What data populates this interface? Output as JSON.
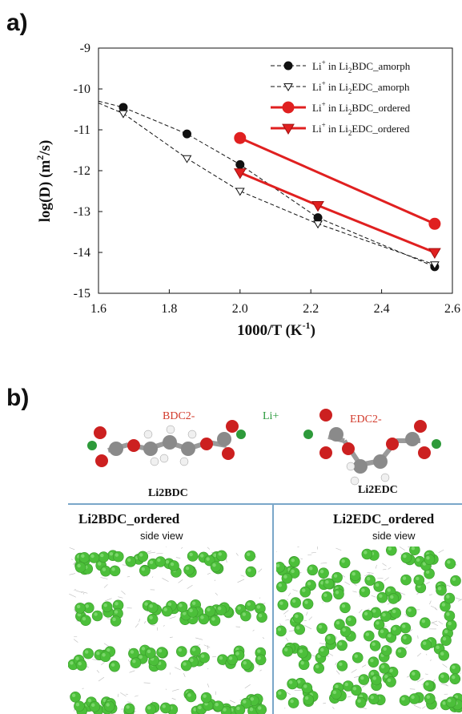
{
  "panel_a_label": "a)",
  "panel_b_label": "b)",
  "chart_data": {
    "type": "line",
    "xlabel": "1000/T (K-1)",
    "ylabel": "log(D) (m2/s)",
    "xlim": [
      1.6,
      2.6
    ],
    "ylim": [
      -15,
      -9
    ],
    "xticks": [
      "1.6",
      "1.8",
      "2.0",
      "2.2",
      "2.4",
      "2.6"
    ],
    "yticks": [
      "-9",
      "-10",
      "-11",
      "-12",
      "-13",
      "-14",
      "-15"
    ],
    "grid": false,
    "legend_position": "top-right",
    "series": [
      {
        "name": "Li+ in Li2BDC_amorph",
        "color": "#111111",
        "style": "dashed",
        "marker": "filled-circle",
        "x": [
          1.67,
          1.85,
          2.0,
          2.22,
          2.55
        ],
        "y": [
          -10.45,
          -11.1,
          -11.85,
          -13.15,
          -14.35
        ]
      },
      {
        "name": "Li+ in Li2EDC_amorph",
        "color": "#111111",
        "style": "dashed",
        "marker": "open-triangle",
        "x": [
          1.67,
          1.85,
          2.0,
          2.22,
          2.55
        ],
        "y": [
          -10.6,
          -11.7,
          -12.5,
          -13.3,
          -14.3
        ]
      },
      {
        "name": "Li+ in Li2BDC_ordered",
        "color": "#e02020",
        "style": "solid",
        "marker": "filled-circle",
        "x": [
          2.0,
          2.55
        ],
        "y": [
          -11.2,
          -13.3
        ]
      },
      {
        "name": "Li+ in Li2EDC_ordered",
        "color": "#e02020",
        "style": "solid",
        "marker": "filled-triangle",
        "x": [
          2.0,
          2.22,
          2.55
        ],
        "y": [
          -12.05,
          -12.85,
          -14.0
        ]
      }
    ]
  },
  "molecules": {
    "bdc_ion_label": "BDC2-",
    "li_label": "Li+",
    "edc_ion_label": "EDC2-",
    "bdc_name": "Li2BDC",
    "edc_name": "Li2EDC"
  },
  "structures": {
    "left_title": "Li2BDC_ordered",
    "left_subtitle": "side view",
    "right_title": "Li2EDC_ordered",
    "right_subtitle": "side view"
  },
  "colors": {
    "li_sphere": "#4cbf3a",
    "oxygen": "#d42a2a",
    "carbon": "#8e8e8e",
    "hydrogen": "#f2f2f2",
    "divider": "#7aa7c9"
  }
}
